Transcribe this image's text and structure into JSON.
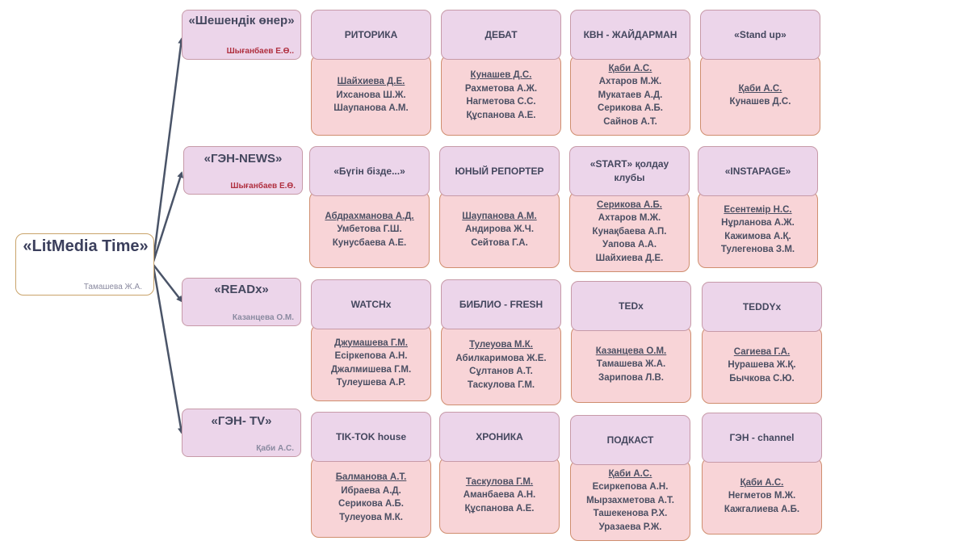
{
  "root": {
    "title": "«LitMedia Time»",
    "author": "Тамашева Ж.А."
  },
  "colors": {
    "arrow": "#4a5468",
    "author_red": "#b03040",
    "author_grey": "#8a8aa0"
  },
  "rows": [
    {
      "club": {
        "title": "«Шешендік өнер»",
        "author": "Шығанбаев Е.Ө..",
        "author_color": "red"
      },
      "cards": [
        {
          "title": "РИТОРИКА",
          "members": [
            "Шайхиева Д.Е.",
            "Ихсанова Ш.Ж.",
            "Шаупанова А.М."
          ]
        },
        {
          "title": "ДЕБАТ",
          "members": [
            "Кунашев Д.С.",
            "Рахметова А.Ж.",
            "Нагметова С.С.",
            "Құспанова А.Е."
          ]
        },
        {
          "title": "КВН - ЖАЙДАРМАН",
          "members": [
            "Қаби А.С.",
            "Ахтаров М.Ж.",
            "Мукатаев А.Д.",
            "Серикова А.Б.",
            "Сайнов А.Т."
          ]
        },
        {
          "title": "«Stand up»",
          "members": [
            "Қаби А.С.",
            "Кунашев Д.С."
          ]
        }
      ]
    },
    {
      "club": {
        "title": "«ГЭН-NEWS»",
        "author": "Шығанбаев Е.Ө.",
        "author_color": "red"
      },
      "cards": [
        {
          "title": "«Бүгін бізде...»",
          "members": [
            "Абдрахманова А.Д.",
            "Умбетова Г.Ш.",
            "Кунусбаева А.Е."
          ]
        },
        {
          "title": "ЮНЫЙ РЕПОРТЕР",
          "members": [
            "Шаупанова А.М.",
            "Андирова Ж.Ч.",
            "Сейтова Г.А."
          ]
        },
        {
          "title": "«START» қолдау клубы",
          "members": [
            "Серикова А.Б.",
            "Ахтаров М.Ж.",
            "Кунақбаева А.П.",
            "Уапова А.А.",
            "Шайхиева Д.Е."
          ]
        },
        {
          "title": "«INSTAPAGE»",
          "members": [
            "Есентемір Н.С.",
            "Нұрланова А.Ж.",
            "Кажимова А.Қ.",
            "Тулегенова З.М."
          ]
        }
      ]
    },
    {
      "club": {
        "title": "«READx»",
        "author": "Казанцева О.М.",
        "author_color": "grey"
      },
      "cards": [
        {
          "title": "WATCHx",
          "members": [
            "Джумашева Г.М.",
            "Есіркепова А.Н.",
            "Джалмишева Г.М.",
            "Тулеушева А.Р."
          ]
        },
        {
          "title": "БИБЛИО - FRESH",
          "members": [
            "Тулеуова М.К.",
            "Абилкаримова Ж.Е.",
            "Сұлтанов А.Т.",
            "Таскулова Г.М."
          ]
        },
        {
          "title": "TEDx",
          "members": [
            "Казанцева О.М.",
            "Тамашева Ж.А.",
            "Зарипова Л.В."
          ]
        },
        {
          "title": "TEDDYx",
          "members": [
            "Сагиева Г.А.",
            "Нурашева Ж.Қ.",
            "Бычкова С.Ю."
          ]
        }
      ]
    },
    {
      "club": {
        "title": "«ГЭН- TV»",
        "author": "Қаби А.С.",
        "author_color": "grey"
      },
      "cards": [
        {
          "title": "TIK-TOK house",
          "members": [
            "Балманова А.Т.",
            "Ибраева А.Д.",
            "Серикова А.Б.",
            "Тулеуова М.К."
          ]
        },
        {
          "title": "ХРОНИКА",
          "members": [
            "Таскулова Г.М.",
            "Аманбаева А.Н.",
            "Құспанова А.Е."
          ]
        },
        {
          "title": "ПОДКАСТ",
          "members": [
            "Қаби А.С.",
            "Есиркепова А.Н.",
            "Мырзахметова А.Т.",
            "Ташекенова Р.Х.",
            "Уразаева Р.Ж."
          ]
        },
        {
          "title": "ГЭН - channel",
          "members": [
            "Қаби А.С.",
            "Негметов М.Ж.",
            "Кажгалиева А.Б."
          ]
        }
      ]
    }
  ]
}
